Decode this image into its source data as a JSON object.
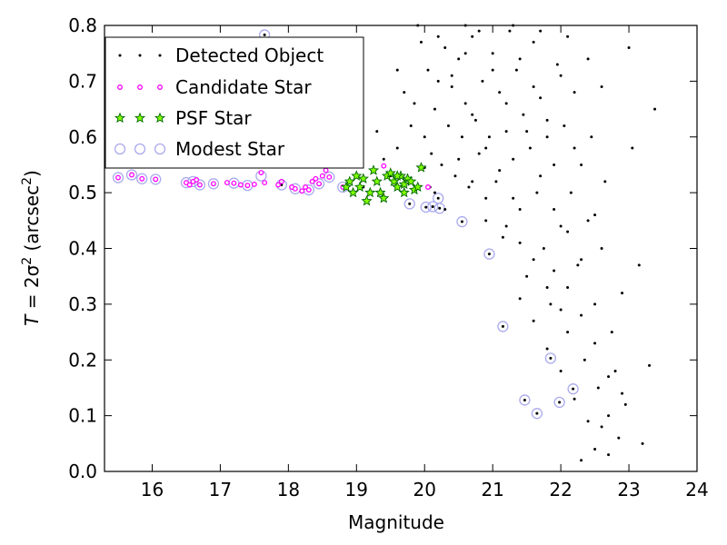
{
  "chart_data": {
    "type": "scatter",
    "xlabel": "Magnitude",
    "ylabel_main": "T",
    "ylabel_eq": " = 2σ",
    "ylabel_sup": "2",
    "ylabel_unit": " (arcsec",
    "ylabel_unit_sup": "2",
    "ylabel_close": ")",
    "xlim": [
      15.3,
      24
    ],
    "ylim": [
      0,
      0.8
    ],
    "xticks": [
      "16",
      "17",
      "18",
      "19",
      "20",
      "21",
      "22",
      "23",
      "24"
    ],
    "yticks": [
      "0.0",
      "0.1",
      "0.2",
      "0.3",
      "0.4",
      "0.5",
      "0.6",
      "0.7",
      "0.8"
    ],
    "grid": false,
    "legend_position": "top-left",
    "legend": [
      "Detected Object",
      "Candidate Star",
      "PSF Star",
      "Modest Star"
    ],
    "colors": {
      "detected": "#000000",
      "candidate": "#ff00ff",
      "psf_fill": "#7fff00",
      "psf_edge": "#006400",
      "modest": "#aaaaee"
    },
    "series": [
      {
        "name": "Detected Object",
        "points": [
          [
            15.5,
            0.527
          ],
          [
            15.7,
            0.532
          ],
          [
            15.85,
            0.525
          ],
          [
            16.05,
            0.524
          ],
          [
            16.5,
            0.518
          ],
          [
            16.6,
            0.52
          ],
          [
            16.7,
            0.514
          ],
          [
            16.9,
            0.516
          ],
          [
            17.2,
            0.517
          ],
          [
            17.4,
            0.513
          ],
          [
            17.6,
            0.536
          ],
          [
            17.65,
            0.783
          ],
          [
            17.9,
            0.514
          ],
          [
            18.1,
            0.507
          ],
          [
            18.3,
            0.505
          ],
          [
            18.45,
            0.516
          ],
          [
            18.6,
            0.528
          ],
          [
            18.8,
            0.51
          ],
          [
            18.9,
            0.52
          ],
          [
            19.1,
            0.51
          ],
          [
            19.3,
            0.52
          ],
          [
            19.4,
            0.548
          ],
          [
            19.5,
            0.53
          ],
          [
            19.7,
            0.515
          ],
          [
            19.78,
            0.48
          ],
          [
            19.9,
            0.51
          ],
          [
            20.0,
            0.545
          ],
          [
            20.02,
            0.474
          ],
          [
            20.08,
            0.51
          ],
          [
            20.12,
            0.475
          ],
          [
            20.15,
            0.5
          ],
          [
            20.2,
            0.49
          ],
          [
            20.22,
            0.472
          ],
          [
            20.55,
            0.448
          ],
          [
            20.95,
            0.39
          ],
          [
            21.15,
            0.26
          ],
          [
            21.47,
            0.128
          ],
          [
            21.65,
            0.104
          ],
          [
            21.85,
            0.203
          ],
          [
            21.98,
            0.124
          ],
          [
            22.18,
            0.148
          ],
          [
            19.3,
            0.61
          ],
          [
            19.4,
            0.56
          ],
          [
            19.6,
            0.58
          ],
          [
            19.7,
            0.68
          ],
          [
            19.8,
            0.62
          ],
          [
            19.85,
            0.66
          ],
          [
            19.95,
            0.77
          ],
          [
            20.0,
            0.6
          ],
          [
            20.05,
            0.72
          ],
          [
            20.1,
            0.57
          ],
          [
            20.15,
            0.65
          ],
          [
            20.2,
            0.7
          ],
          [
            20.25,
            0.55
          ],
          [
            20.3,
            0.76
          ],
          [
            20.35,
            0.62
          ],
          [
            20.4,
            0.69
          ],
          [
            20.45,
            0.53
          ],
          [
            20.5,
            0.74
          ],
          [
            20.55,
            0.6
          ],
          [
            20.6,
            0.66
          ],
          [
            20.65,
            0.51
          ],
          [
            20.7,
            0.78
          ],
          [
            20.75,
            0.63
          ],
          [
            20.8,
            0.57
          ],
          [
            20.85,
            0.7
          ],
          [
            20.9,
            0.45
          ],
          [
            20.95,
            0.6
          ],
          [
            21.0,
            0.75
          ],
          [
            21.05,
            0.52
          ],
          [
            21.1,
            0.68
          ],
          [
            21.15,
            0.42
          ],
          [
            21.2,
            0.61
          ],
          [
            21.25,
            0.79
          ],
          [
            21.3,
            0.56
          ],
          [
            21.35,
            0.72
          ],
          [
            21.4,
            0.47
          ],
          [
            21.45,
            0.64
          ],
          [
            21.5,
            0.35
          ],
          [
            21.55,
            0.58
          ],
          [
            21.6,
            0.77
          ],
          [
            21.65,
            0.5
          ],
          [
            21.7,
            0.67
          ],
          [
            21.75,
            0.4
          ],
          [
            21.8,
            0.6
          ],
          [
            21.85,
            0.3
          ],
          [
            21.9,
            0.55
          ],
          [
            21.95,
            0.73
          ],
          [
            22.0,
            0.44
          ],
          [
            22.05,
            0.62
          ],
          [
            22.1,
            0.25
          ],
          [
            22.15,
            0.5
          ],
          [
            22.2,
            0.68
          ],
          [
            22.25,
            0.37
          ],
          [
            22.3,
            0.55
          ],
          [
            22.35,
            0.2
          ],
          [
            22.4,
            0.45
          ],
          [
            22.45,
            0.6
          ],
          [
            22.5,
            0.3
          ],
          [
            22.55,
            0.15
          ],
          [
            22.6,
            0.4
          ],
          [
            22.65,
            0.52
          ],
          [
            22.7,
            0.1
          ],
          [
            22.75,
            0.25
          ],
          [
            22.8,
            0.18
          ],
          [
            22.85,
            0.06
          ],
          [
            22.9,
            0.32
          ],
          [
            23.0,
            0.76
          ],
          [
            23.05,
            0.58
          ],
          [
            23.15,
            0.37
          ],
          [
            23.2,
            0.05
          ],
          [
            23.3,
            0.19
          ],
          [
            23.38,
            0.65
          ],
          [
            22.95,
            0.12
          ],
          [
            22.5,
            0.04
          ],
          [
            22.6,
            0.08
          ],
          [
            22.3,
            0.02
          ],
          [
            22.7,
            0.03
          ],
          [
            20.6,
            0.8
          ],
          [
            20.8,
            0.79
          ],
          [
            21.0,
            0.72
          ],
          [
            21.2,
            0.66
          ],
          [
            21.4,
            0.74
          ],
          [
            21.6,
            0.69
          ],
          [
            21.8,
            0.63
          ],
          [
            22.0,
            0.71
          ],
          [
            22.2,
            0.58
          ],
          [
            20.7,
            0.64
          ],
          [
            20.9,
            0.58
          ],
          [
            21.1,
            0.54
          ],
          [
            21.3,
            0.49
          ],
          [
            21.5,
            0.61
          ],
          [
            21.7,
            0.53
          ],
          [
            21.9,
            0.47
          ],
          [
            22.1,
            0.43
          ],
          [
            22.3,
            0.38
          ],
          [
            22.5,
            0.46
          ],
          [
            21.4,
            0.31
          ],
          [
            21.6,
            0.27
          ],
          [
            21.8,
            0.22
          ],
          [
            22.0,
            0.18
          ],
          [
            22.2,
            0.13
          ],
          [
            22.4,
            0.09
          ],
          [
            21.9,
            0.36
          ],
          [
            22.1,
            0.33
          ],
          [
            22.3,
            0.28
          ],
          [
            22.5,
            0.23
          ],
          [
            22.7,
            0.17
          ],
          [
            22.9,
            0.14
          ],
          [
            21.2,
            0.44
          ],
          [
            21.4,
            0.41
          ],
          [
            21.6,
            0.38
          ],
          [
            21.8,
            0.33
          ],
          [
            22.0,
            0.29
          ],
          [
            20.5,
            0.56
          ],
          [
            20.7,
            0.52
          ],
          [
            20.9,
            0.49
          ],
          [
            20.3,
            0.47
          ],
          [
            20.4,
            0.71
          ],
          [
            20.6,
            0.75
          ],
          [
            19.6,
            0.72
          ],
          [
            19.9,
            0.8
          ],
          [
            20.2,
            0.78
          ],
          [
            21.3,
            0.8
          ],
          [
            21.7,
            0.79
          ],
          [
            22.1,
            0.78
          ],
          [
            22.4,
            0.74
          ],
          [
            22.6,
            0.69
          ]
        ]
      },
      {
        "name": "Candidate Star",
        "points": [
          [
            15.5,
            0.527
          ],
          [
            15.7,
            0.532
          ],
          [
            15.85,
            0.525
          ],
          [
            16.05,
            0.524
          ],
          [
            16.5,
            0.518
          ],
          [
            16.55,
            0.514
          ],
          [
            16.6,
            0.52
          ],
          [
            16.65,
            0.523
          ],
          [
            16.7,
            0.514
          ],
          [
            16.9,
            0.516
          ],
          [
            17.1,
            0.518
          ],
          [
            17.2,
            0.517
          ],
          [
            17.3,
            0.514
          ],
          [
            17.4,
            0.513
          ],
          [
            17.5,
            0.515
          ],
          [
            17.6,
            0.536
          ],
          [
            17.65,
            0.518
          ],
          [
            17.85,
            0.514
          ],
          [
            17.9,
            0.52
          ],
          [
            18.05,
            0.51
          ],
          [
            18.1,
            0.507
          ],
          [
            18.2,
            0.503
          ],
          [
            18.25,
            0.51
          ],
          [
            18.3,
            0.505
          ],
          [
            18.35,
            0.52
          ],
          [
            18.4,
            0.525
          ],
          [
            18.45,
            0.516
          ],
          [
            18.5,
            0.53
          ],
          [
            18.55,
            0.54
          ],
          [
            18.6,
            0.528
          ],
          [
            18.8,
            0.51
          ],
          [
            19.2,
            0.5
          ],
          [
            19.4,
            0.548
          ],
          [
            20.05,
            0.51
          ]
        ]
      },
      {
        "name": "PSF Star",
        "points": [
          [
            18.85,
            0.51
          ],
          [
            18.9,
            0.52
          ],
          [
            18.95,
            0.5
          ],
          [
            19.0,
            0.53
          ],
          [
            19.05,
            0.51
          ],
          [
            19.1,
            0.525
          ],
          [
            19.15,
            0.485
          ],
          [
            19.2,
            0.5
          ],
          [
            19.25,
            0.54
          ],
          [
            19.3,
            0.52
          ],
          [
            19.35,
            0.5
          ],
          [
            19.4,
            0.49
          ],
          [
            19.45,
            0.53
          ],
          [
            19.5,
            0.535
          ],
          [
            19.55,
            0.52
          ],
          [
            19.6,
            0.51
          ],
          [
            19.65,
            0.53
          ],
          [
            19.7,
            0.515
          ],
          [
            19.75,
            0.525
          ],
          [
            19.8,
            0.52
          ],
          [
            19.85,
            0.505
          ],
          [
            19.9,
            0.51
          ],
          [
            19.95,
            0.545
          ],
          [
            19.6,
            0.53
          ],
          [
            19.7,
            0.5
          ]
        ]
      },
      {
        "name": "Modest Star",
        "points": [
          [
            15.5,
            0.527
          ],
          [
            15.7,
            0.532
          ],
          [
            15.85,
            0.525
          ],
          [
            16.05,
            0.524
          ],
          [
            16.5,
            0.518
          ],
          [
            16.6,
            0.52
          ],
          [
            16.7,
            0.514
          ],
          [
            16.9,
            0.516
          ],
          [
            17.2,
            0.517
          ],
          [
            17.4,
            0.513
          ],
          [
            17.6,
            0.53
          ],
          [
            17.65,
            0.783
          ],
          [
            17.9,
            0.514
          ],
          [
            18.1,
            0.507
          ],
          [
            18.3,
            0.505
          ],
          [
            18.45,
            0.516
          ],
          [
            18.6,
            0.528
          ],
          [
            18.8,
            0.51
          ],
          [
            19.78,
            0.48
          ],
          [
            20.02,
            0.474
          ],
          [
            20.12,
            0.475
          ],
          [
            20.22,
            0.472
          ],
          [
            20.2,
            0.49
          ],
          [
            20.55,
            0.448
          ],
          [
            20.95,
            0.39
          ],
          [
            21.15,
            0.26
          ],
          [
            21.47,
            0.128
          ],
          [
            21.65,
            0.104
          ],
          [
            21.85,
            0.203
          ],
          [
            21.98,
            0.124
          ],
          [
            22.18,
            0.148
          ]
        ]
      }
    ]
  }
}
